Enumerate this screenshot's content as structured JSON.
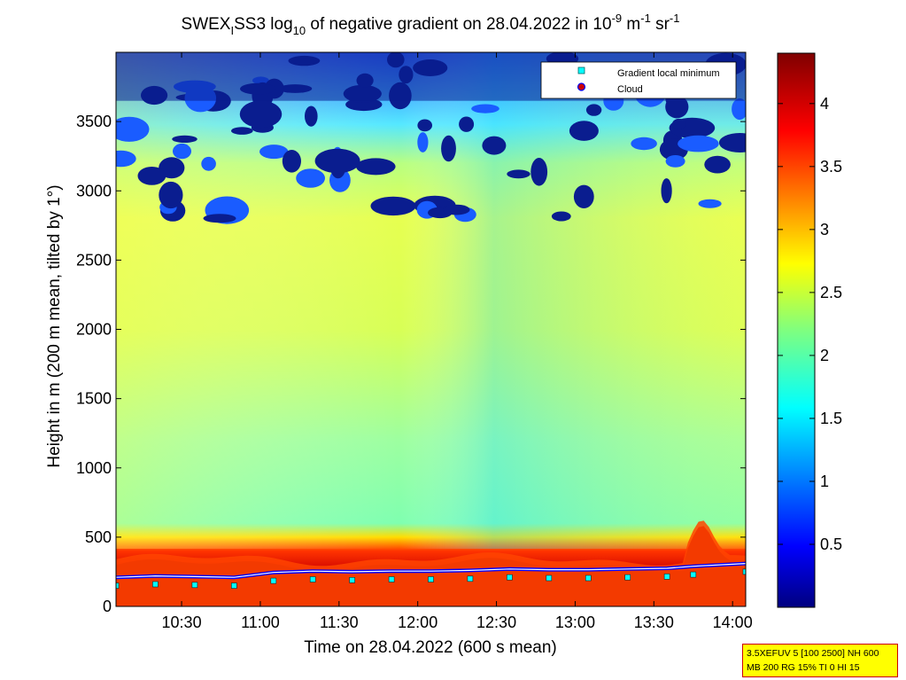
{
  "title": {
    "base": "SWEX",
    "sub1": "I",
    "mid": "SS3 log",
    "sub2": "10",
    "rest": " of negative gradient on 28.04.2022 in 10",
    "exp1": "-9",
    "unit": " m",
    "exp2": "-1",
    "unit2": " sr",
    "exp3": "-1"
  },
  "info_box": {
    "line1": "3.5XEFUV 5 [100 2500] NH 600",
    "line2": "MB 200 RG 15% TI 0 HI 15"
  },
  "colors": {
    "cloud_marker": "#cc0000",
    "cloud_marker_edge": "#0000ff",
    "gradient_marker": "#00ffff"
  },
  "chart_data": {
    "type": "heatmap",
    "xlabel": "Time on 28.04.2022 (600 s mean)",
    "ylabel": "Height in m (200 m mean, tilted by 1°)",
    "xlim": [
      "10:05",
      "14:05"
    ],
    "ylim": [
      0,
      4000
    ],
    "x_ticks": [
      "10:30",
      "11:00",
      "11:30",
      "12:00",
      "12:30",
      "13:00",
      "13:30",
      "14:00"
    ],
    "y_ticks": [
      0,
      500,
      1000,
      1500,
      2000,
      2500,
      3000,
      3500
    ],
    "colorbar": {
      "range": [
        0,
        4.4
      ],
      "ticks": [
        0.5,
        1,
        1.5,
        2,
        2.5,
        3,
        3.5,
        4
      ],
      "colormap": "jet"
    },
    "legend": {
      "placement": "top-right",
      "entries": [
        {
          "label": "Gradient local minimum",
          "marker": "square"
        },
        {
          "label": "Cloud",
          "marker": "circle"
        }
      ]
    },
    "series": [
      {
        "name": "Gradient local minimum",
        "x": [
          "10:05",
          "10:20",
          "10:35",
          "10:50",
          "11:05",
          "11:20",
          "11:35",
          "11:50",
          "12:05",
          "12:20",
          "12:35",
          "12:50",
          "13:05",
          "13:20",
          "13:35",
          "13:45",
          "14:05"
        ],
        "y": [
          150,
          160,
          155,
          150,
          185,
          195,
          190,
          195,
          195,
          200,
          210,
          205,
          205,
          210,
          215,
          230,
          250
        ]
      }
    ],
    "field_description_values": {
      "boundary_layer_top_m": 280,
      "boundary_layer_peak_m": [
        {
          "time": "13:45",
          "height": 560
        }
      ],
      "low_value_region_above_m": 2800
    }
  }
}
